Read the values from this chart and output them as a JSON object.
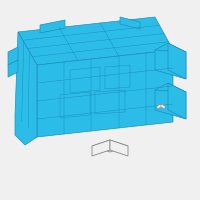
{
  "bg_color": "#f0f0f0",
  "main_fill": "#2bbde8",
  "main_edge": "#1a8ab5",
  "dark_fill": "#1a9ecf",
  "small_fill": "#f0f0f0",
  "small_edge": "#888888",
  "line_color": "#1a8ab5",
  "fig_width": 2.0,
  "fig_height": 2.0,
  "dpi": 100,
  "lw": 0.45
}
